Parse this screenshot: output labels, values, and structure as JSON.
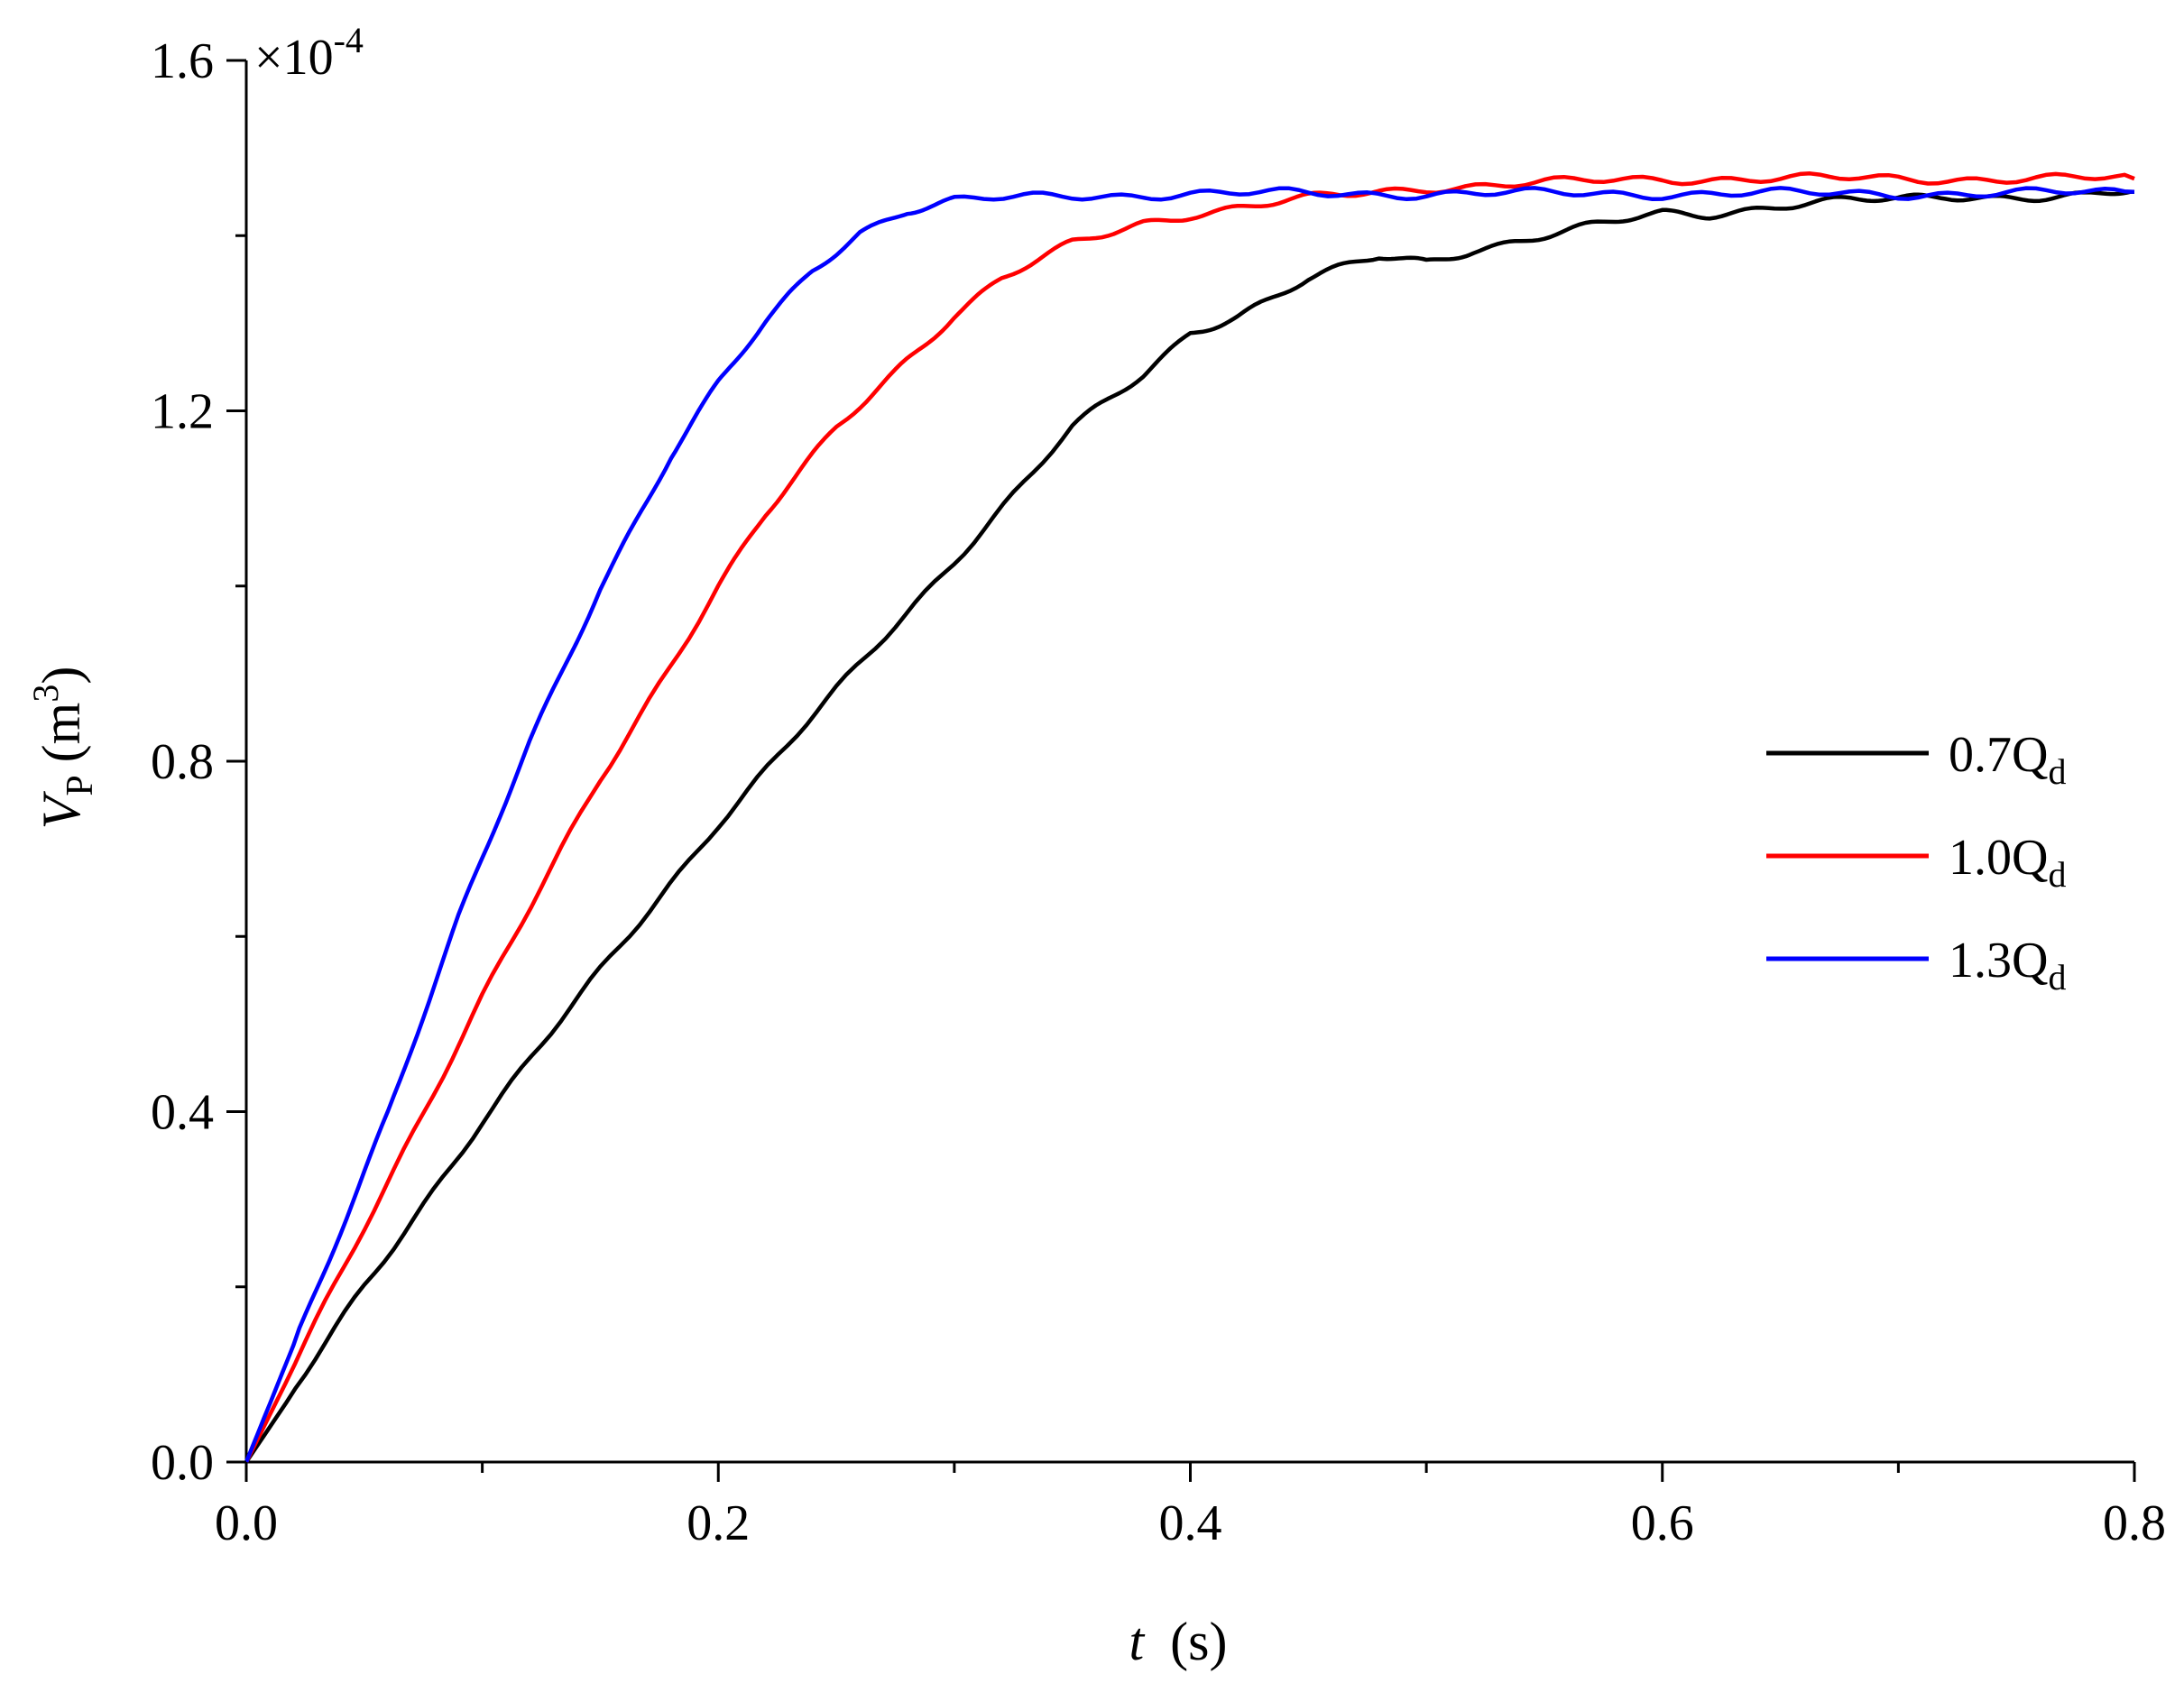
{
  "chart_data": {
    "type": "line",
    "title": "",
    "xlabel": {
      "var": "t",
      "unit": "(s)"
    },
    "ylabel": {
      "var": "V",
      "sub": "P",
      "unit_open": "(m",
      "unit_sup": "3",
      "unit_close": ")"
    },
    "y_multiplier": {
      "base": "×10",
      "exp": "-4"
    },
    "xlim": [
      0.0,
      0.8
    ],
    "ylim": [
      0.0,
      1.6
    ],
    "x_ticks": [
      "0.0",
      "0.2",
      "0.4",
      "0.6",
      "0.8"
    ],
    "y_ticks": [
      "0.0",
      "0.4",
      "0.8",
      "1.2",
      "1.6"
    ],
    "x_minor_step": 0.1,
    "y_minor_step": 0.2,
    "grid": false,
    "legend_position": "center-right",
    "series": [
      {
        "name": "0.7Q",
        "sub": "d",
        "color": "#000000",
        "x": [
          0,
          0.05,
          0.1,
          0.15,
          0.2,
          0.25,
          0.3,
          0.35,
          0.38,
          0.4,
          0.42,
          0.45,
          0.48,
          0.5,
          0.52,
          0.55,
          0.58,
          0.6,
          0.62,
          0.65,
          0.68,
          0.7,
          0.72,
          0.75,
          0.78,
          0.8
        ],
        "y": [
          0,
          0.2,
          0.39,
          0.56,
          0.73,
          0.88,
          1.03,
          1.18,
          1.24,
          1.29,
          1.31,
          1.35,
          1.375,
          1.37,
          1.385,
          1.4,
          1.415,
          1.425,
          1.425,
          1.435,
          1.44,
          1.44,
          1.445,
          1.445,
          1.445,
          1.45
        ]
      },
      {
        "name": "1.0Q",
        "sub": "d",
        "color": "#ff0000",
        "x": [
          0,
          0.05,
          0.1,
          0.15,
          0.2,
          0.22,
          0.25,
          0.28,
          0.3,
          0.32,
          0.35,
          0.38,
          0.4,
          0.43,
          0.46,
          0.5,
          0.55,
          0.6,
          0.65,
          0.7,
          0.75,
          0.8
        ],
        "y": [
          0,
          0.27,
          0.53,
          0.78,
          1.0,
          1.08,
          1.18,
          1.26,
          1.31,
          1.35,
          1.39,
          1.415,
          1.425,
          1.435,
          1.445,
          1.455,
          1.46,
          1.465,
          1.465,
          1.465,
          1.465,
          1.465
        ]
      },
      {
        "name": "1.3Q",
        "sub": "d",
        "color": "#0000ff",
        "x": [
          0,
          0.03,
          0.06,
          0.09,
          0.12,
          0.15,
          0.18,
          0.2,
          0.22,
          0.24,
          0.26,
          0.28,
          0.3,
          0.35,
          0.4,
          0.45,
          0.5,
          0.55,
          0.6,
          0.65,
          0.7,
          0.75,
          0.8
        ],
        "y": [
          0,
          0.2,
          0.4,
          0.62,
          0.82,
          1.0,
          1.15,
          1.23,
          1.3,
          1.36,
          1.405,
          1.43,
          1.44,
          1.445,
          1.448,
          1.448,
          1.448,
          1.448,
          1.448,
          1.448,
          1.448,
          1.448,
          1.45
        ]
      }
    ]
  }
}
